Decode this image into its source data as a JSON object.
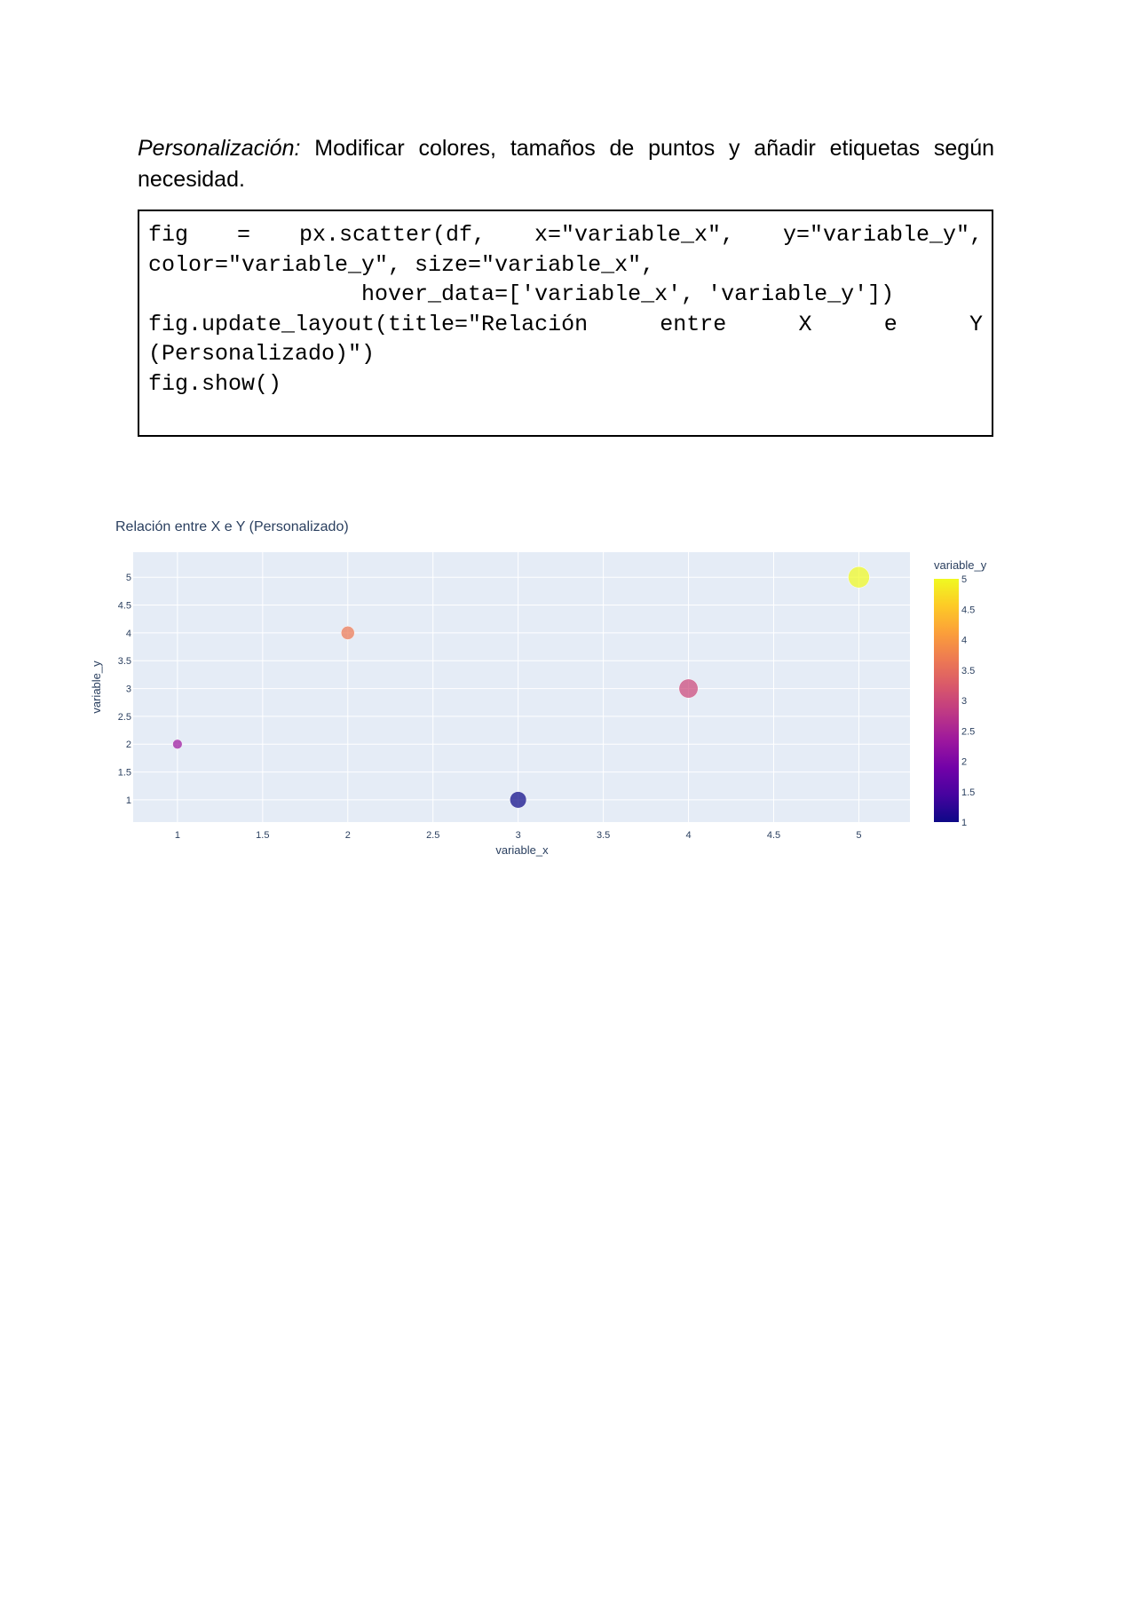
{
  "intro": {
    "lead": "Personalización:",
    "text": " Modificar colores, tamaños de puntos y añadir etiquetas según necesidad."
  },
  "code": {
    "line1": [
      "fig",
      "=",
      "px.scatter(df,",
      "x=\"variable_x\",",
      "y=\"variable_y\","
    ],
    "line2": "color=\"variable_y\", size=\"variable_x\",",
    "line3": "                hover_data=['variable_x', 'variable_y'])",
    "line4": [
      "fig.update_layout(title=\"Relación",
      "entre",
      "X",
      "e",
      "Y"
    ],
    "line5": "(Personalizado)\")",
    "line6": "fig.show()"
  },
  "chart_data": {
    "type": "scatter",
    "title": "Relación entre X e Y (Personalizado)",
    "xlabel": "variable_x",
    "ylabel": "variable_y",
    "xlim": [
      0.74,
      5.3
    ],
    "ylim": [
      0.6,
      5.45
    ],
    "xticks": [
      1,
      1.5,
      2,
      2.5,
      3,
      3.5,
      4,
      4.5,
      5
    ],
    "yticks": [
      1,
      1.5,
      2,
      2.5,
      3,
      3.5,
      4,
      4.5,
      5
    ],
    "points": [
      {
        "x": 1,
        "y": 2,
        "size": 1,
        "color": "#9c179e"
      },
      {
        "x": 2,
        "y": 4,
        "size": 2,
        "color": "#ed7953"
      },
      {
        "x": 3,
        "y": 1,
        "size": 3,
        "color": "#0d0887"
      },
      {
        "x": 4,
        "y": 3,
        "size": 4,
        "color": "#cc4778"
      },
      {
        "x": 5,
        "y": 5,
        "size": 5,
        "color": "#f0f921"
      }
    ],
    "grid": true,
    "background": "#e5ecf6",
    "colorbar": {
      "title": "variable_y",
      "ticks": [
        1,
        1.5,
        2,
        2.5,
        3,
        3.5,
        4,
        4.5,
        5
      ],
      "range": [
        1,
        5
      ],
      "colorscale": [
        "#0d0887",
        "#46039f",
        "#7201a8",
        "#9c179e",
        "#bd3786",
        "#d8576b",
        "#ed7953",
        "#fb9f3a",
        "#fdca26",
        "#f0f921"
      ]
    }
  }
}
